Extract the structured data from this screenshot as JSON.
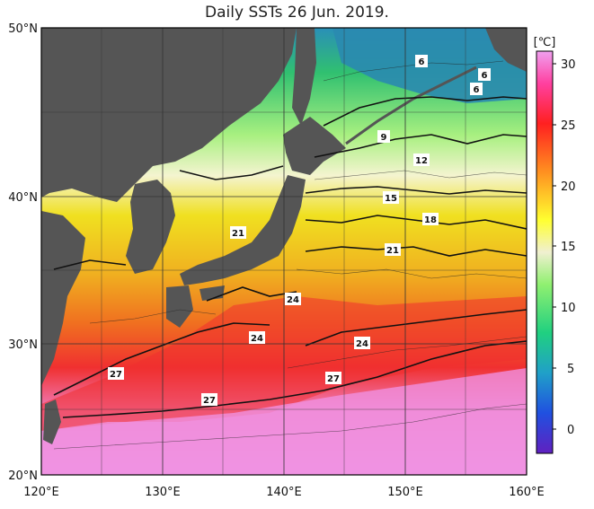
{
  "title": "Daily SSTs 26 Jun. 2019.",
  "map": {
    "lat_ticks": [
      "50°N",
      "40°N",
      "30°N",
      "20°N"
    ],
    "lon_ticks": [
      "120°E",
      "130°E",
      "140°E",
      "150°E",
      "160°E"
    ]
  },
  "colorbar": {
    "unit": "[℃]",
    "labels": [
      "30",
      "25",
      "20",
      "15",
      "10",
      "5",
      "0"
    ],
    "colors": [
      "#e87ce8",
      "#ff3030",
      "#ffa020",
      "#ffff30",
      "#30e050",
      "#30a0c0",
      "#3030d0"
    ]
  },
  "contour_labels": [
    "6",
    "6",
    "6",
    "9",
    "12",
    "15",
    "18",
    "21",
    "21",
    "24",
    "24",
    "24",
    "27",
    "27",
    "27"
  ]
}
